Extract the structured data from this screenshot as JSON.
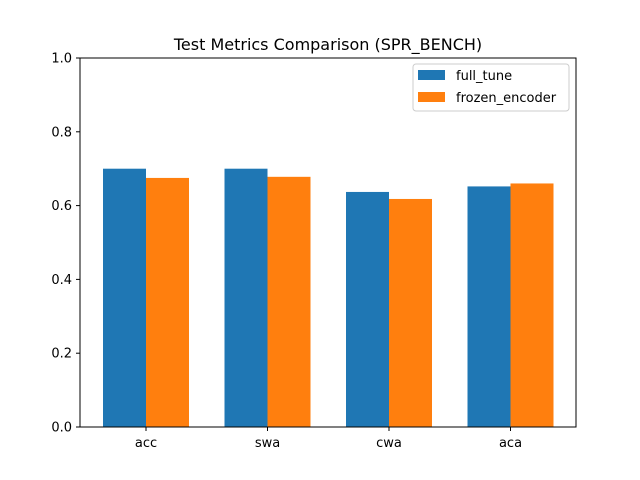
{
  "chart_data": {
    "type": "bar",
    "title": "Test Metrics Comparison (SPR_BENCH)",
    "xlabel": "",
    "ylabel": "",
    "categories": [
      "acc",
      "swa",
      "cwa",
      "aca"
    ],
    "series": [
      {
        "name": "full_tune",
        "color": "#1f77b4",
        "values": [
          0.7,
          0.7,
          0.637,
          0.652
        ]
      },
      {
        "name": "frozen_encoder",
        "color": "#ff7f0e",
        "values": [
          0.675,
          0.678,
          0.618,
          0.66
        ]
      }
    ],
    "ylim": [
      0,
      1.0
    ],
    "yticks": [
      "0.0",
      "0.2",
      "0.4",
      "0.6",
      "0.8",
      "1.0"
    ],
    "grid": false,
    "legend_position": "top-right"
  }
}
